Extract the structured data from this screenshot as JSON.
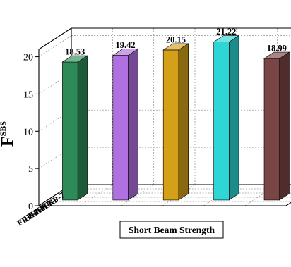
{
  "chart_data": {
    "type": "bar",
    "subtype": "3d-bar",
    "categories": [
      "FRP-3",
      "FRP-4",
      "FRP-5",
      "FRP-6",
      "FRP-7"
    ],
    "values": [
      18.53,
      19.42,
      20.15,
      21.22,
      18.99
    ],
    "value_labels": [
      "18.53",
      "19.42",
      "20.15",
      "21.22",
      "18.99"
    ],
    "ylabel_main": "F",
    "ylabel_sub": "SBS",
    "ylim": [
      0,
      21
    ],
    "yticks": [
      "0",
      "5",
      "10",
      "15",
      "20"
    ],
    "grid": true,
    "legend": {
      "label": "Short Beam Strength",
      "placement": "bottom-center"
    },
    "colors": {
      "bars": [
        "#2e8b57",
        "#b070e0",
        "#d4a017",
        "#2ed6d6",
        "#7a4545"
      ],
      "axis": "#000000",
      "grid": "#9a9a9a"
    }
  }
}
